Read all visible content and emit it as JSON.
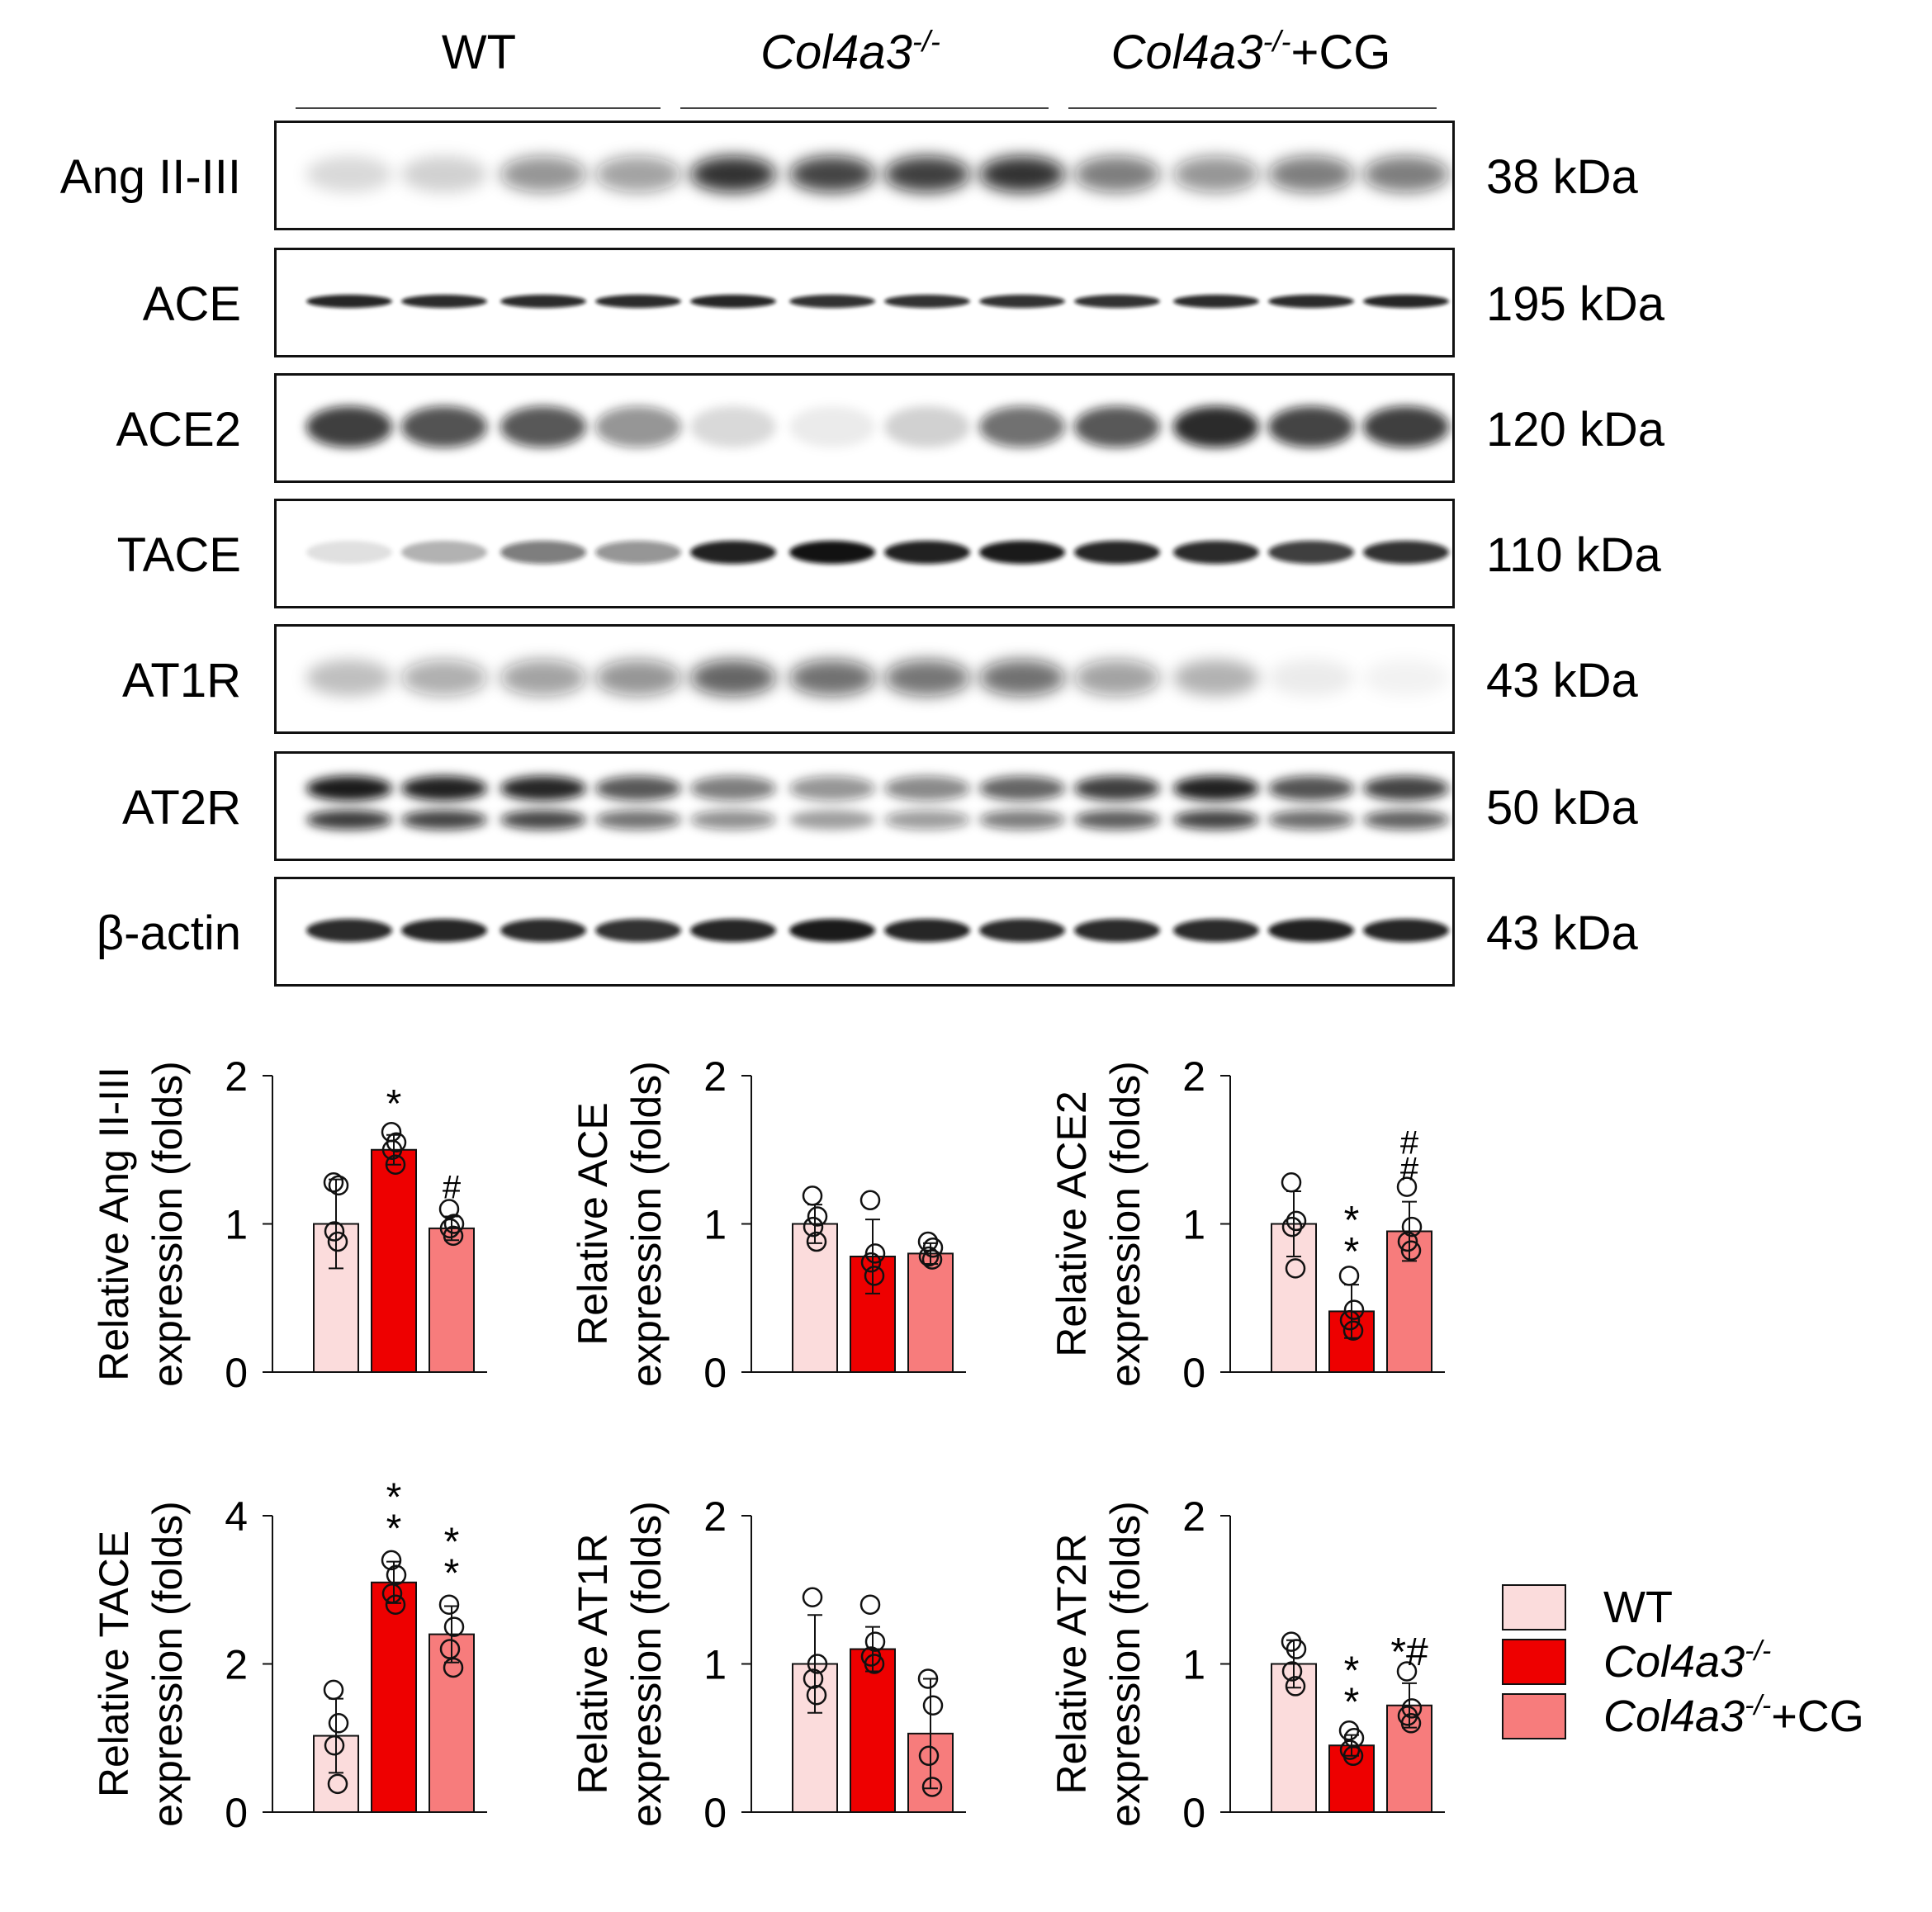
{
  "groups": [
    {
      "name": "WT",
      "gene": "",
      "suffix": "",
      "extra": ""
    },
    {
      "name": "",
      "gene": "Col4a3",
      "suffix": "-/-",
      "extra": ""
    },
    {
      "name": "",
      "gene": "Col4a3",
      "suffix": "-/-",
      "extra": "+CG"
    }
  ],
  "colors": {
    "wt": "#fbdcdc",
    "ko": "#ee0000",
    "cg": "#f77c7c",
    "band": "#111111"
  },
  "blots": [
    {
      "label": "Ang II-III",
      "kda": "38 kDa",
      "intensity": [
        0.15,
        0.18,
        0.45,
        0.4,
        0.85,
        0.78,
        0.8,
        0.85,
        0.55,
        0.45,
        0.55,
        0.55
      ],
      "band_kind": "diffuse"
    },
    {
      "label": "ACE",
      "kda": "195 kDa",
      "intensity": [
        0.9,
        0.88,
        0.88,
        0.88,
        0.9,
        0.85,
        0.85,
        0.85,
        0.85,
        0.88,
        0.88,
        0.9
      ],
      "band_kind": "thin"
    },
    {
      "label": "ACE2",
      "kda": "120 kDa",
      "intensity": [
        0.8,
        0.72,
        0.7,
        0.45,
        0.15,
        0.08,
        0.18,
        0.6,
        0.7,
        0.88,
        0.78,
        0.8
      ],
      "band_kind": "thick"
    },
    {
      "label": "TACE",
      "kda": "110 kDa",
      "intensity": [
        0.12,
        0.3,
        0.55,
        0.45,
        0.92,
        0.98,
        0.92,
        0.95,
        0.9,
        0.88,
        0.8,
        0.85
      ],
      "band_kind": "medium"
    },
    {
      "label": "AT1R",
      "kda": "43 kDa",
      "intensity": [
        0.25,
        0.35,
        0.4,
        0.45,
        0.65,
        0.6,
        0.58,
        0.6,
        0.4,
        0.3,
        0.08,
        0.05
      ],
      "band_kind": "diffuse"
    },
    {
      "label": "AT2R",
      "kda": "50 kDa",
      "intensity": [
        0.95,
        0.92,
        0.9,
        0.7,
        0.55,
        0.45,
        0.5,
        0.65,
        0.8,
        0.92,
        0.72,
        0.78
      ],
      "band_kind": "double"
    },
    {
      "label": "β-actin",
      "kda": "43 kDa",
      "intensity": [
        0.88,
        0.9,
        0.88,
        0.85,
        0.9,
        0.95,
        0.9,
        0.88,
        0.88,
        0.88,
        0.92,
        0.9
      ],
      "band_kind": "medium"
    }
  ],
  "legend": {
    "items": [
      {
        "label": "WT",
        "gene": "",
        "suffix": "",
        "extra": ""
      },
      {
        "label": "",
        "gene": "Col4a3",
        "suffix": "-/-",
        "extra": ""
      },
      {
        "label": "",
        "gene": "Col4a3",
        "suffix": "-/-",
        "extra": "+CG"
      }
    ]
  },
  "chart_data": [
    {
      "type": "bar",
      "ylabel_line1": "Relative Ang II-III",
      "ylabel_line2": "expression (folds)",
      "ylim": [
        0,
        2
      ],
      "yticks": [
        0,
        1,
        2
      ],
      "categories": [
        "WT",
        "Col4a3-/-",
        "Col4a3-/-+CG"
      ],
      "values": [
        1.0,
        1.5,
        0.97
      ],
      "errors": [
        0.3,
        0.1,
        0.08
      ],
      "points": [
        [
          1.28,
          1.26,
          0.95,
          0.88
        ],
        [
          1.62,
          1.55,
          1.5,
          1.4
        ],
        [
          1.1,
          1.0,
          0.97,
          0.92
        ]
      ],
      "annotations": [
        "",
        "*",
        "#"
      ]
    },
    {
      "type": "bar",
      "ylabel_line1": "Relative ACE",
      "ylabel_line2": "expression (folds)",
      "ylim": [
        0,
        2
      ],
      "yticks": [
        0,
        1,
        2
      ],
      "categories": [
        "WT",
        "Col4a3-/-",
        "Col4a3-/-+CG"
      ],
      "values": [
        1.0,
        0.78,
        0.8
      ],
      "errors": [
        0.13,
        0.25,
        0.07
      ],
      "points": [
        [
          1.19,
          1.05,
          0.98,
          0.88
        ],
        [
          1.16,
          0.8,
          0.74,
          0.65
        ],
        [
          0.88,
          0.84,
          0.78,
          0.76
        ]
      ],
      "annotations": [
        "",
        "",
        ""
      ]
    },
    {
      "type": "bar",
      "ylabel_line1": "Relative ACE2",
      "ylabel_line2": "expression (folds)",
      "ylim": [
        0,
        2
      ],
      "yticks": [
        0,
        1,
        2
      ],
      "categories": [
        "WT",
        "Col4a3-/-",
        "Col4a3-/-+CG"
      ],
      "values": [
        1.0,
        0.41,
        0.95
      ],
      "errors": [
        0.22,
        0.18,
        0.2
      ],
      "points": [
        [
          1.28,
          1.02,
          0.98,
          0.7
        ],
        [
          0.65,
          0.42,
          0.35,
          0.28
        ],
        [
          1.25,
          0.98,
          0.88,
          0.82
        ]
      ],
      "annotations": [
        "",
        "**",
        "##"
      ]
    },
    {
      "type": "bar",
      "ylabel_line1": "Relative TACE",
      "ylabel_line2": "expression (folds)",
      "ylim": [
        0,
        4
      ],
      "yticks": [
        0,
        2,
        4
      ],
      "categories": [
        "WT",
        "Col4a3-/-",
        "Col4a3-/-+CG"
      ],
      "values": [
        1.03,
        3.1,
        2.4
      ],
      "errors": [
        0.5,
        0.28,
        0.38
      ],
      "points": [
        [
          1.65,
          1.2,
          0.9,
          0.38
        ],
        [
          3.4,
          3.2,
          2.95,
          2.8
        ],
        [
          2.8,
          2.5,
          2.2,
          1.95
        ]
      ],
      "annotations": [
        "",
        "**",
        "**"
      ]
    },
    {
      "type": "bar",
      "ylabel_line1": "Relative AT1R",
      "ylabel_line2": "expression (folds)",
      "ylim": [
        0,
        2
      ],
      "yticks": [
        0,
        1,
        2
      ],
      "categories": [
        "WT",
        "Col4a3-/-",
        "Col4a3-/-+CG"
      ],
      "values": [
        1.0,
        1.1,
        0.53
      ],
      "errors": [
        0.33,
        0.15,
        0.37
      ],
      "points": [
        [
          1.45,
          1.0,
          0.9,
          0.79
        ],
        [
          1.4,
          1.15,
          1.05,
          1.0
        ],
        [
          0.9,
          0.72,
          0.38,
          0.17
        ]
      ],
      "annotations": [
        "",
        "",
        ""
      ]
    },
    {
      "type": "bar",
      "ylabel_line1": "Relative AT2R",
      "ylabel_line2": "expression (folds)",
      "ylim": [
        0,
        2
      ],
      "yticks": [
        0,
        1,
        2
      ],
      "categories": [
        "WT",
        "Col4a3-/-",
        "Col4a3-/-+CG"
      ],
      "values": [
        1.0,
        0.45,
        0.72
      ],
      "errors": [
        0.16,
        0.07,
        0.15
      ],
      "points": [
        [
          1.15,
          1.1,
          0.95,
          0.85
        ],
        [
          0.55,
          0.5,
          0.42,
          0.38
        ],
        [
          0.95,
          0.7,
          0.65,
          0.6
        ]
      ],
      "annotations": [
        "",
        "**",
        "*#"
      ]
    }
  ]
}
